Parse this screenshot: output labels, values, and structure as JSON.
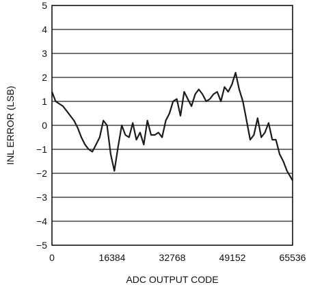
{
  "chart_data": {
    "type": "line",
    "title": "",
    "xlabel": "ADC OUTPUT CODE",
    "ylabel": "INL ERROR (LSB)",
    "xlim": [
      0,
      65536
    ],
    "ylim": [
      -5,
      5
    ],
    "xticks": [
      0,
      16384,
      32768,
      49152,
      65536
    ],
    "yticks": [
      5,
      4,
      3,
      2,
      1,
      0,
      -1,
      -2,
      -3,
      -4,
      -5
    ],
    "grid": "horizontal",
    "line_color": "#1a1a1a",
    "series": [
      {
        "x": [
          0,
          1000,
          2000,
          3000,
          4500,
          6000,
          7000,
          8000,
          9000,
          10000,
          11000,
          12000,
          13000,
          14000,
          15000,
          16000,
          17000,
          18000,
          19000,
          20000,
          21000,
          22000,
          23000,
          24000,
          25000,
          26000,
          27000,
          28000,
          29000,
          30000,
          31000,
          32000,
          33000,
          34000,
          35000,
          36000,
          37000,
          38000,
          39000,
          40000,
          41000,
          42000,
          43000,
          44000,
          45000,
          46000,
          47000,
          48000,
          49000,
          50000,
          51000,
          52000,
          53000,
          54000,
          55000,
          56000,
          57000,
          58000,
          59000,
          60000,
          61000,
          62000,
          63000,
          64000,
          65536
        ],
        "y": [
          1.4,
          1.0,
          0.9,
          0.8,
          0.5,
          0.2,
          -0.1,
          -0.5,
          -0.8,
          -1.0,
          -1.1,
          -0.8,
          -0.5,
          0.2,
          0.0,
          -1.2,
          -1.9,
          -0.9,
          0.0,
          -0.4,
          -0.5,
          0.1,
          -0.6,
          -0.3,
          -0.8,
          0.2,
          -0.4,
          -0.4,
          -0.3,
          -0.5,
          0.2,
          0.5,
          1.0,
          1.1,
          0.4,
          1.4,
          1.1,
          0.8,
          1.3,
          1.5,
          1.3,
          1.0,
          1.1,
          1.3,
          1.4,
          1.0,
          1.6,
          1.4,
          1.7,
          2.2,
          1.5,
          1.0,
          0.2,
          -0.6,
          -0.4,
          0.3,
          -0.5,
          -0.3,
          0.1,
          -0.6,
          -0.6,
          -1.2,
          -1.5,
          -1.9,
          -2.3
        ]
      }
    ]
  }
}
